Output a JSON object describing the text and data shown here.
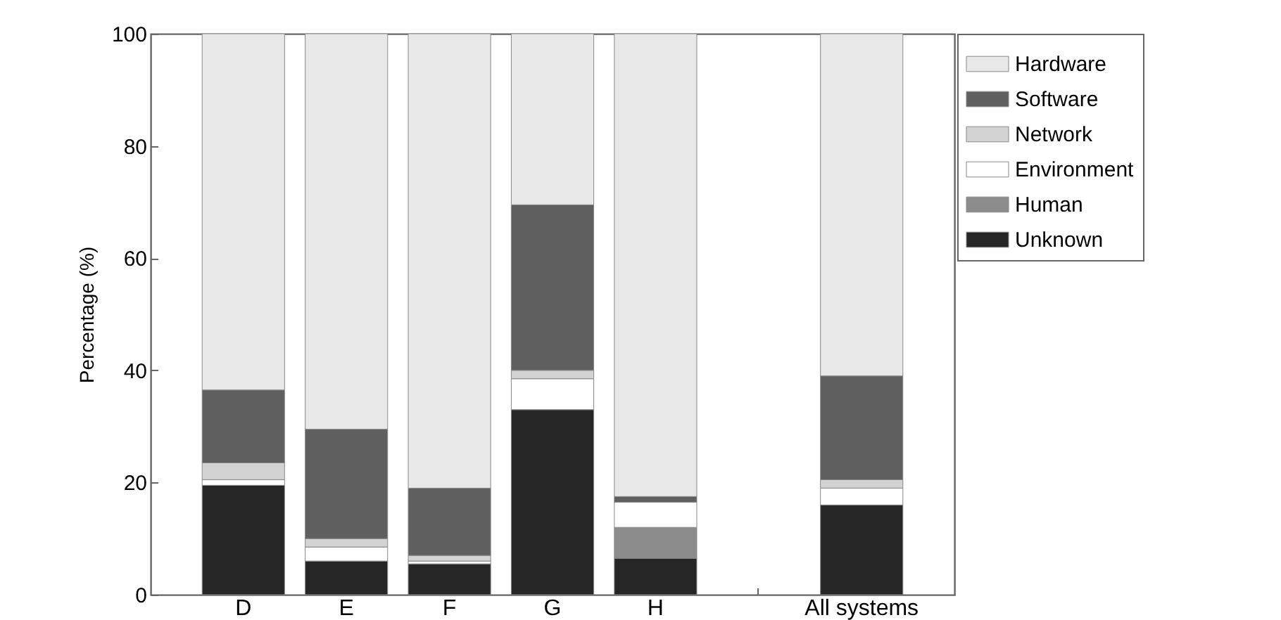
{
  "chart_data": {
    "type": "bar",
    "stacked": true,
    "ylabel": "Percentage (%)",
    "categories": [
      "D",
      "E",
      "F",
      "G",
      "H",
      null,
      "All systems"
    ],
    "series": [
      {
        "name": "Unknown",
        "color": "#262626",
        "values": [
          19.5,
          6,
          5.5,
          33,
          6.5,
          null,
          16
        ]
      },
      {
        "name": "Human",
        "color": "#8c8c8c",
        "values": [
          0,
          0,
          0,
          0,
          5.5,
          null,
          0
        ]
      },
      {
        "name": "Environment",
        "color": "#ffffff",
        "values": [
          1,
          2.5,
          0.5,
          5.5,
          4.5,
          null,
          3
        ]
      },
      {
        "name": "Network",
        "color": "#d3d3d3",
        "values": [
          3,
          1.5,
          1,
          1.5,
          0,
          null,
          1.5
        ]
      },
      {
        "name": "Software",
        "color": "#5f5f5f",
        "values": [
          13,
          19.5,
          12,
          29.5,
          1,
          null,
          18.5
        ]
      },
      {
        "name": "Hardware",
        "color": "#e8e8e8",
        "values": [
          63.5,
          70.5,
          81,
          30.5,
          82.5,
          null,
          61
        ]
      }
    ],
    "ylim": [
      0,
      100
    ],
    "yticks": [
      0,
      20,
      40,
      60,
      80,
      100
    ],
    "grid": false,
    "legend": "top right"
  }
}
